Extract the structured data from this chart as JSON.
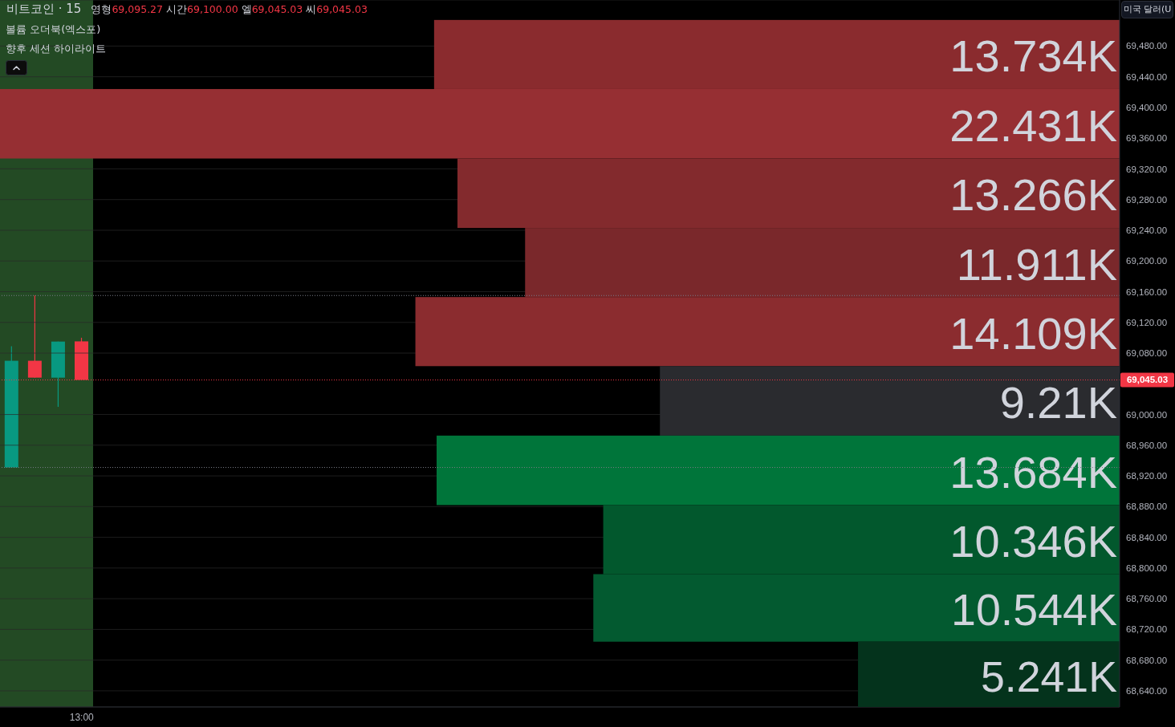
{
  "chart_data": [
    {
      "type": "candlestick",
      "title": "비트코인 · 15",
      "subtitle": "영형69,095.27 시간69,100.00 엘69,045.03 씨69,045.03",
      "annotations": [
        "볼륨 오더북(엑스포)",
        "향후 세션 하이라이트"
      ],
      "categories": [
        null,
        null,
        null,
        "13:00",
        null,
        null,
        null,
        null,
        null,
        null,
        null,
        null,
        null,
        null,
        null,
        null,
        null,
        null,
        null,
        null,
        null,
        null,
        null,
        null,
        null,
        null,
        null,
        null,
        null,
        null,
        null,
        null,
        null,
        null,
        null,
        null,
        null,
        null,
        null,
        null,
        null,
        null,
        null,
        null,
        null,
        null,
        null,
        null
      ],
      "ohlc": [
        [
          68931,
          69089,
          68931,
          69070
        ],
        [
          69070,
          69155,
          69048,
          69048
        ],
        [
          69048,
          69095,
          69010,
          69095
        ],
        [
          69095.27,
          69100,
          69045.03,
          69045.03
        ],
        null,
        null,
        null,
        null,
        null,
        null,
        null,
        null,
        null,
        null,
        null,
        null,
        null,
        null,
        null,
        null,
        null,
        null,
        null,
        null,
        null,
        null,
        null,
        null,
        null,
        null,
        null,
        null,
        null,
        null,
        null,
        null,
        null,
        null,
        null,
        null,
        null,
        null,
        null,
        null,
        null,
        null,
        null,
        null
      ],
      "colors": [
        "#089981",
        "#f23645",
        "#089981",
        "#f23645",
        null,
        null,
        null,
        null,
        null,
        null,
        null,
        null,
        null,
        null,
        null,
        null,
        null,
        null,
        null,
        null,
        null,
        null,
        null,
        null,
        null,
        null,
        null,
        null,
        null,
        null,
        null,
        null,
        null,
        null,
        null,
        null,
        null,
        null,
        null,
        null,
        null,
        null,
        null,
        null,
        null,
        null,
        null,
        null
      ],
      "ylim": [
        68619,
        69540
      ],
      "tick_labels": "x"
    },
    {
      "type": "bar",
      "orientation": "horizontal",
      "ylabel": "미국 달러(U",
      "x": [
        69469,
        69379,
        69288,
        69198,
        69108,
        69018,
        68927,
        68837,
        68747,
        68661
      ],
      "values": [
        13734,
        22431,
        13266,
        11911,
        14109,
        9210,
        13684,
        10346,
        10544,
        5241
      ],
      "value_labels": [
        "13.734K",
        "22.431K",
        "13.266K",
        "11.911K",
        "14.109K",
        "9.21K",
        "13.684K",
        "10.346K",
        "10.544K",
        "5.241K"
      ],
      "colors": [
        "#8a2b2e",
        "#962f33",
        "#832a2d",
        "#7a282b",
        "#8b2c2f",
        "#2a2b2f",
        "#00753a",
        "#02582d",
        "#035a30",
        "#04331c"
      ],
      "ylim": [
        68619,
        69540
      ],
      "yticks": [
        {
          "value": 68640,
          "label": "68,640.00"
        },
        {
          "value": 68680,
          "label": "68,680.00"
        },
        {
          "value": 68720,
          "label": "68,720.00"
        },
        {
          "value": 68760,
          "label": "68,760.00"
        },
        {
          "value": 68800,
          "label": "68,800.00"
        },
        {
          "value": 68840,
          "label": "68,840.00"
        },
        {
          "value": 68880,
          "label": "68,880.00"
        },
        {
          "value": 68920,
          "label": "68,920.00"
        },
        {
          "value": 68960,
          "label": "68,960.00"
        },
        {
          "value": 69000,
          "label": "69,000.00"
        },
        {
          "value": 69080,
          "label": "69,080.00"
        },
        {
          "value": 69120,
          "label": "69,120.00"
        },
        {
          "value": 69160,
          "label": "69,160.00"
        },
        {
          "value": 69200,
          "label": "69,200.00"
        },
        {
          "value": 69240,
          "label": "69,240.00"
        },
        {
          "value": 69280,
          "label": "69,280.00"
        },
        {
          "value": 69320,
          "label": "69,320.00"
        },
        {
          "value": 69360,
          "label": "69,360.00"
        },
        {
          "value": 69400,
          "label": "69,400.00"
        },
        {
          "value": 69440,
          "label": "69,440.00"
        },
        {
          "value": 69480,
          "label": "69,480.00"
        }
      ],
      "grid": "y",
      "tick_labels": "y",
      "ref_lines": [
        {
          "axis": "y",
          "value": 69045.03,
          "label": "69,045.03",
          "color": "#f23645",
          "line_style": "dotted"
        },
        {
          "axis": "y",
          "value": 69155,
          "color": "#787b86",
          "line_style": "dotted"
        },
        {
          "axis": "y",
          "value": 68931,
          "color": "#787b86",
          "line_style": "dotted"
        }
      ]
    }
  ]
}
